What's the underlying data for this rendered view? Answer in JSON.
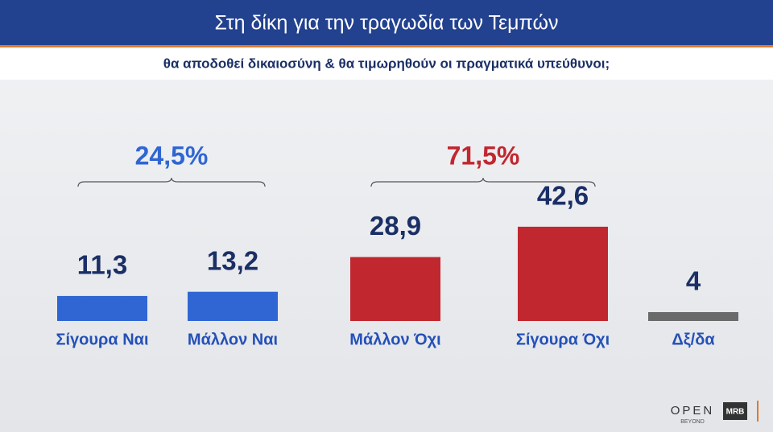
{
  "chart_data": {
    "type": "bar",
    "title": "Στη δίκη για την τραγωδία των Τεμπών",
    "subtitle": "θα αποδοθεί δικαιοσύνη & θα τιμωρηθούν οι πραγματικά υπεύθυνοι;",
    "categories": [
      "Σίγουρα Ναι",
      "Μάλλον Ναι",
      "Μάλλον Όχι",
      "Σίγουρα Όχι",
      "Δξ/δα"
    ],
    "values": [
      11.3,
      13.2,
      28.9,
      42.6,
      4
    ],
    "value_labels": [
      "11,3",
      "13,2",
      "28,9",
      "42,6",
      "4"
    ],
    "colors": [
      "#2f66d3",
      "#2f66d3",
      "#c1272f",
      "#c1272f",
      "#6a6a6a"
    ],
    "groups": [
      {
        "value": 24.5,
        "label": "24,5%",
        "color": "#2f66d3"
      },
      {
        "value": 71.5,
        "label": "71,5%",
        "color": "#c1272f"
      }
    ]
  },
  "logos": {
    "open": "OPEN",
    "beyond": "BEYOND",
    "mrb": "MRB"
  }
}
